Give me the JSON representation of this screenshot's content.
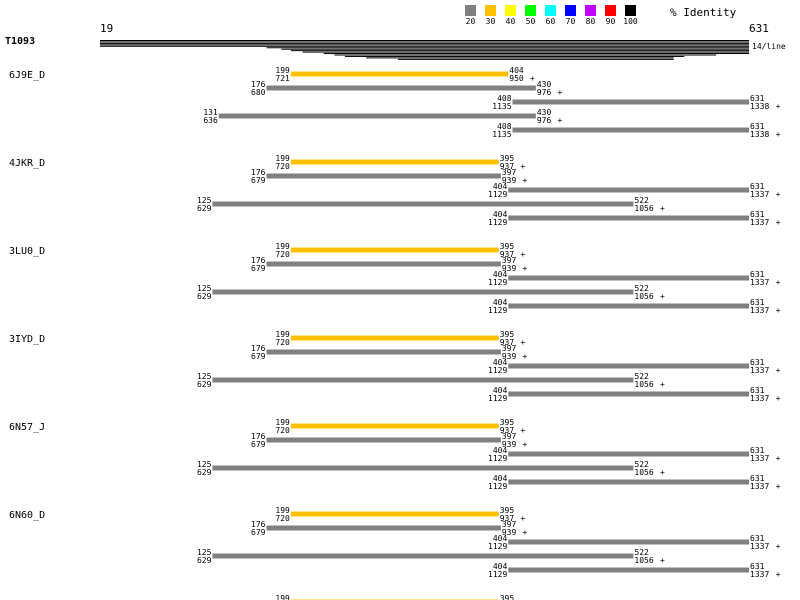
{
  "query": {
    "name": "T1093",
    "start": "19",
    "end": "631",
    "scale_note": "14/line"
  },
  "legend": {
    "title": "% Identity",
    "items": [
      {
        "label": "20",
        "color": "#808080"
      },
      {
        "label": "30",
        "color": "#ffc000"
      },
      {
        "label": "40",
        "color": "#ffff00"
      },
      {
        "label": "50",
        "color": "#00ff00"
      },
      {
        "label": "60",
        "color": "#00ffff"
      },
      {
        "label": "70",
        "color": "#0000ff"
      },
      {
        "label": "80",
        "color": "#c000ff"
      },
      {
        "label": "90",
        "color": "#ff0000"
      },
      {
        "label": "100",
        "color": "#000000"
      }
    ]
  },
  "coverage": {
    "lines": [
      [
        19,
        631
      ],
      [
        19,
        631
      ],
      [
        19,
        631
      ],
      [
        19,
        631
      ],
      [
        19,
        631
      ],
      [
        176,
        631
      ],
      [
        190,
        631
      ],
      [
        199,
        631
      ],
      [
        210,
        631
      ],
      [
        230,
        631
      ],
      [
        240,
        600
      ],
      [
        250,
        570
      ],
      [
        270,
        560
      ],
      [
        300,
        560
      ]
    ]
  },
  "hits": [
    {
      "name": "6J9E_D",
      "alignments": [
        {
          "qs": 199,
          "qe": 404,
          "ts": "721",
          "te": "950",
          "pct": 30,
          "strand": "+"
        },
        {
          "qs": 176,
          "qe": 430,
          "ts": "680",
          "te": "976",
          "pct": 20,
          "strand": "+"
        },
        {
          "qs": 408,
          "qe": 631,
          "ts": "1135",
          "te": "1338",
          "pct": 20,
          "strand": "+"
        },
        {
          "qs": 131,
          "qe": 430,
          "ts": "636",
          "te": "976",
          "pct": 20,
          "strand": "+"
        },
        {
          "qs": 408,
          "qe": 631,
          "ts": "1135",
          "te": "1338",
          "pct": 20,
          "strand": "+"
        }
      ]
    },
    {
      "name": "4JKR_D",
      "alignments": [
        {
          "qs": 199,
          "qe": 395,
          "ts": "720",
          "te": "937",
          "pct": 30,
          "strand": "+"
        },
        {
          "qs": 176,
          "qe": 397,
          "ts": "679",
          "te": "939",
          "pct": 20,
          "strand": "+"
        },
        {
          "qs": 404,
          "qe": 631,
          "ts": "1129",
          "te": "1337",
          "pct": 20,
          "strand": "+"
        },
        {
          "qs": 125,
          "qe": 522,
          "ts": "629",
          "te": "1056",
          "pct": 20,
          "strand": "+"
        },
        {
          "qs": 404,
          "qe": 631,
          "ts": "1129",
          "te": "1337",
          "pct": 20,
          "strand": "+"
        }
      ]
    },
    {
      "name": "3LU0_D",
      "alignments": [
        {
          "qs": 199,
          "qe": 395,
          "ts": "720",
          "te": "937",
          "pct": 30,
          "strand": "+"
        },
        {
          "qs": 176,
          "qe": 397,
          "ts": "679",
          "te": "939",
          "pct": 20,
          "strand": "+"
        },
        {
          "qs": 404,
          "qe": 631,
          "ts": "1129",
          "te": "1337",
          "pct": 20,
          "strand": "+"
        },
        {
          "qs": 125,
          "qe": 522,
          "ts": "629",
          "te": "1056",
          "pct": 20,
          "strand": "+"
        },
        {
          "qs": 404,
          "qe": 631,
          "ts": "1129",
          "te": "1337",
          "pct": 20,
          "strand": "+"
        }
      ]
    },
    {
      "name": "3IYD_D",
      "alignments": [
        {
          "qs": 199,
          "qe": 395,
          "ts": "720",
          "te": "937",
          "pct": 30,
          "strand": "+"
        },
        {
          "qs": 176,
          "qe": 397,
          "ts": "679",
          "te": "939",
          "pct": 20,
          "strand": "+"
        },
        {
          "qs": 404,
          "qe": 631,
          "ts": "1129",
          "te": "1337",
          "pct": 20,
          "strand": "+"
        },
        {
          "qs": 125,
          "qe": 522,
          "ts": "629",
          "te": "1056",
          "pct": 20,
          "strand": "+"
        },
        {
          "qs": 404,
          "qe": 631,
          "ts": "1129",
          "te": "1337",
          "pct": 20,
          "strand": "+"
        }
      ]
    },
    {
      "name": "6N57_J",
      "alignments": [
        {
          "qs": 199,
          "qe": 395,
          "ts": "720",
          "te": "937",
          "pct": 30,
          "strand": "+"
        },
        {
          "qs": 176,
          "qe": 397,
          "ts": "679",
          "te": "939",
          "pct": 20,
          "strand": "+"
        },
        {
          "qs": 404,
          "qe": 631,
          "ts": "1129",
          "te": "1337",
          "pct": 20,
          "strand": "+"
        },
        {
          "qs": 125,
          "qe": 522,
          "ts": "629",
          "te": "1056",
          "pct": 20,
          "strand": "+"
        },
        {
          "qs": 404,
          "qe": 631,
          "ts": "1129",
          "te": "1337",
          "pct": 20,
          "strand": "+"
        }
      ]
    },
    {
      "name": "6N60_D",
      "alignments": [
        {
          "qs": 199,
          "qe": 395,
          "ts": "720",
          "te": "937",
          "pct": 30,
          "strand": "+"
        },
        {
          "qs": 176,
          "qe": 397,
          "ts": "679",
          "te": "939",
          "pct": 20,
          "strand": "+"
        },
        {
          "qs": 404,
          "qe": 631,
          "ts": "1129",
          "te": "1337",
          "pct": 20,
          "strand": "+"
        },
        {
          "qs": 125,
          "qe": 522,
          "ts": "629",
          "te": "1056",
          "pct": 20,
          "strand": "+"
        },
        {
          "qs": 404,
          "qe": 631,
          "ts": "1129",
          "te": "1337",
          "pct": 20,
          "strand": "+"
        }
      ]
    },
    {
      "name": "",
      "alignments": [
        {
          "qs": 199,
          "qe": 395,
          "ts": "",
          "te": "",
          "pct": 30,
          "strand": ""
        }
      ]
    }
  ]
}
